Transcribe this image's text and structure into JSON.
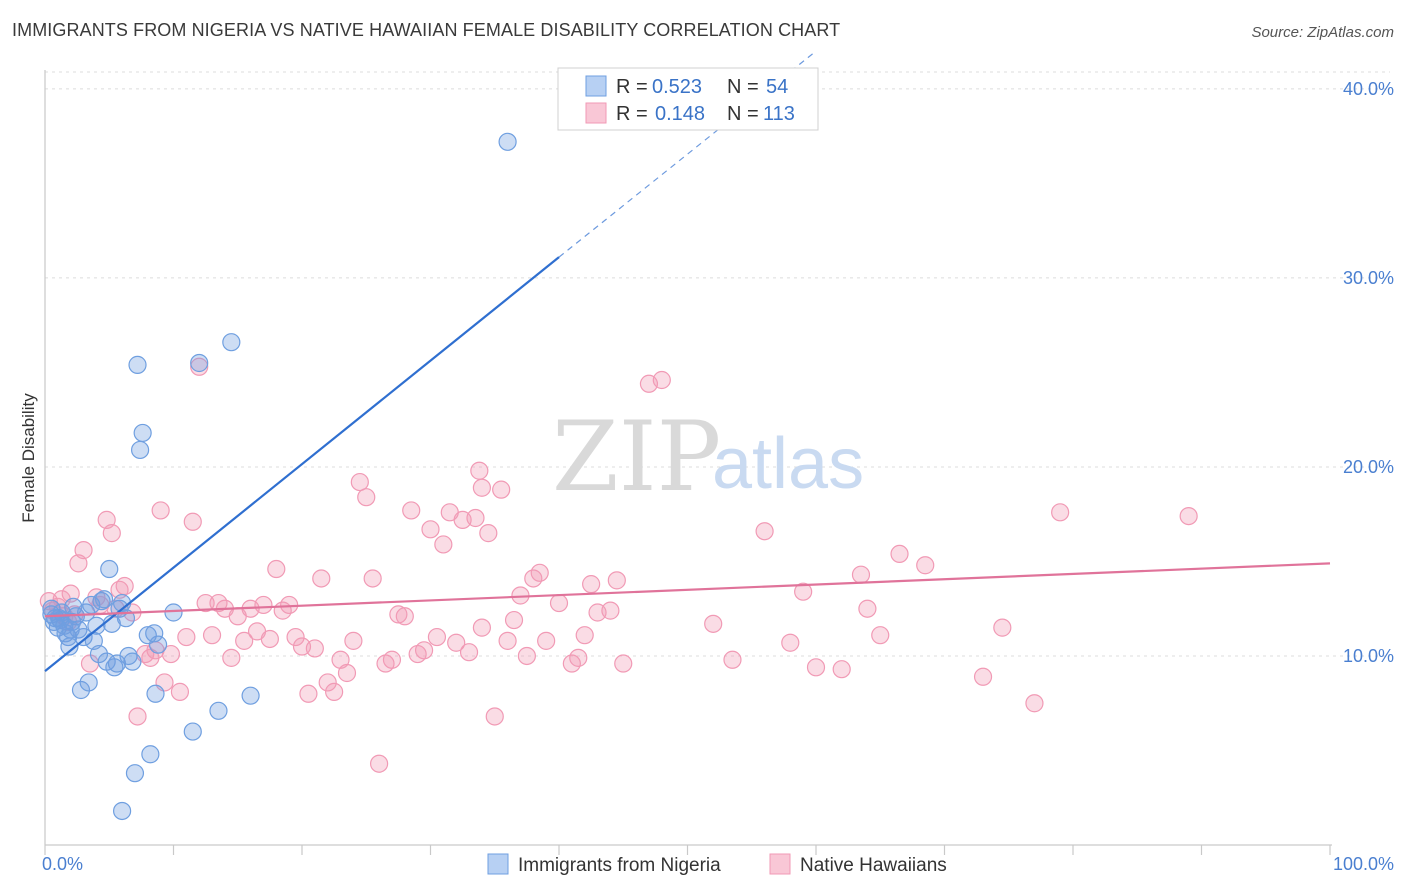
{
  "header": {
    "title": "IMMIGRANTS FROM NIGERIA VS NATIVE HAWAIIAN FEMALE DISABILITY CORRELATION CHART",
    "source": "Source: ZipAtlas.com"
  },
  "watermark": {
    "zip": "ZIP",
    "atlas": "atlas"
  },
  "legend": {
    "r_label": "R =",
    "n_label": "N =",
    "entries": [
      {
        "r": "0.523",
        "n": "54"
      },
      {
        "r": "0.148",
        "n": "113"
      }
    ]
  },
  "bottom_legend": [
    "Immigrants from Nigeria",
    "Native Hawaiians"
  ],
  "chart_data": {
    "type": "scatter",
    "xlabel": "",
    "ylabel": "Female Disability",
    "xlim": [
      0,
      100
    ],
    "ylim": [
      0,
      41
    ],
    "x_tick_labels": [
      "0.0%",
      "100.0%"
    ],
    "y_ticks": [
      10,
      20,
      30,
      40
    ],
    "y_tick_labels": [
      "10.0%",
      "20.0%",
      "30.0%",
      "40.0%"
    ],
    "grid": true,
    "legend_position": "top-center",
    "colors": {
      "nigeria": "#6f9fe0",
      "hawaiian": "#f19ab5",
      "nigeria_line": "#2f6fd0",
      "hawaiian_line": "#e0739a"
    },
    "series": [
      {
        "name": "Immigrants from Nigeria",
        "r": 0.523,
        "n": 54,
        "trend": {
          "x0": 0,
          "y0": 9.2,
          "x1": 40,
          "y1": 31.1,
          "dash_to_x": 60,
          "dash_to_y": 42
        },
        "points": [
          [
            0.5,
            12.5
          ],
          [
            0.5,
            12.2
          ],
          [
            0.7,
            11.8
          ],
          [
            0.8,
            12.0
          ],
          [
            1.0,
            11.5
          ],
          [
            1.2,
            11.9
          ],
          [
            1.3,
            12.3
          ],
          [
            1.5,
            11.6
          ],
          [
            1.6,
            11.2
          ],
          [
            1.8,
            11.0
          ],
          [
            1.9,
            10.5
          ],
          [
            2.1,
            11.8
          ],
          [
            2.2,
            12.6
          ],
          [
            2.4,
            12.1
          ],
          [
            2.6,
            11.4
          ],
          [
            2.8,
            8.2
          ],
          [
            3.0,
            11.0
          ],
          [
            3.2,
            12.3
          ],
          [
            3.4,
            8.6
          ],
          [
            3.6,
            12.7
          ],
          [
            3.8,
            10.8
          ],
          [
            4.0,
            11.6
          ],
          [
            4.2,
            10.1
          ],
          [
            4.4,
            12.9
          ],
          [
            4.6,
            13.0
          ],
          [
            4.8,
            9.7
          ],
          [
            5.0,
            14.6
          ],
          [
            5.2,
            11.7
          ],
          [
            5.4,
            9.4
          ],
          [
            5.6,
            9.6
          ],
          [
            5.8,
            12.5
          ],
          [
            6.0,
            12.8
          ],
          [
            6.3,
            12.0
          ],
          [
            6.5,
            10.0
          ],
          [
            6.8,
            9.7
          ],
          [
            7.0,
            3.8
          ],
          [
            7.2,
            25.4
          ],
          [
            7.4,
            20.9
          ],
          [
            7.6,
            21.8
          ],
          [
            8.0,
            11.1
          ],
          [
            8.2,
            4.8
          ],
          [
            8.5,
            11.2
          ],
          [
            8.6,
            8.0
          ],
          [
            8.8,
            10.6
          ],
          [
            10.0,
            12.3
          ],
          [
            11.5,
            6.0
          ],
          [
            12.0,
            25.5
          ],
          [
            13.5,
            7.1
          ],
          [
            14.5,
            26.6
          ],
          [
            16.0,
            7.9
          ],
          [
            6.0,
            1.8
          ],
          [
            36.0,
            37.2
          ],
          [
            2.0,
            11.4
          ],
          [
            1.1,
            12.0
          ]
        ]
      },
      {
        "name": "Native Hawaiians",
        "r": 0.148,
        "n": 113,
        "trend": {
          "x0": 0,
          "y0": 12.1,
          "x1": 100,
          "y1": 14.9
        },
        "points": [
          [
            0.3,
            12.9
          ],
          [
            0.6,
            12.4
          ],
          [
            1.0,
            12.6
          ],
          [
            1.3,
            13.0
          ],
          [
            1.5,
            12.1
          ],
          [
            1.8,
            11.8
          ],
          [
            2.0,
            13.3
          ],
          [
            2.3,
            12.2
          ],
          [
            2.6,
            14.9
          ],
          [
            3.0,
            15.6
          ],
          [
            3.5,
            9.6
          ],
          [
            4.0,
            13.1
          ],
          [
            4.3,
            12.7
          ],
          [
            4.8,
            17.2
          ],
          [
            5.2,
            16.5
          ],
          [
            5.5,
            12.5
          ],
          [
            5.8,
            13.5
          ],
          [
            6.2,
            13.7
          ],
          [
            6.8,
            12.3
          ],
          [
            7.2,
            6.8
          ],
          [
            7.8,
            10.1
          ],
          [
            8.2,
            9.9
          ],
          [
            8.6,
            10.3
          ],
          [
            9.0,
            17.7
          ],
          [
            9.3,
            8.6
          ],
          [
            9.8,
            10.1
          ],
          [
            10.5,
            8.1
          ],
          [
            11.0,
            11.0
          ],
          [
            11.5,
            17.1
          ],
          [
            12.0,
            25.3
          ],
          [
            12.5,
            12.8
          ],
          [
            13.0,
            11.1
          ],
          [
            13.5,
            12.8
          ],
          [
            14.0,
            12.5
          ],
          [
            14.5,
            9.9
          ],
          [
            15.0,
            12.1
          ],
          [
            15.5,
            10.8
          ],
          [
            16.0,
            12.5
          ],
          [
            16.5,
            11.3
          ],
          [
            17.0,
            12.7
          ],
          [
            17.5,
            10.9
          ],
          [
            18.0,
            14.6
          ],
          [
            18.5,
            12.4
          ],
          [
            19.0,
            12.7
          ],
          [
            19.5,
            11.0
          ],
          [
            20.0,
            10.5
          ],
          [
            20.5,
            8.0
          ],
          [
            21.0,
            10.4
          ],
          [
            21.5,
            14.1
          ],
          [
            22.0,
            8.6
          ],
          [
            22.5,
            8.1
          ],
          [
            23.0,
            9.8
          ],
          [
            23.5,
            9.1
          ],
          [
            24.0,
            10.8
          ],
          [
            24.5,
            19.2
          ],
          [
            25.0,
            18.4
          ],
          [
            25.5,
            14.1
          ],
          [
            26.0,
            4.3
          ],
          [
            26.5,
            9.6
          ],
          [
            27.0,
            9.8
          ],
          [
            27.5,
            12.2
          ],
          [
            28.0,
            12.1
          ],
          [
            28.5,
            17.7
          ],
          [
            29.0,
            10.1
          ],
          [
            29.5,
            10.3
          ],
          [
            30.0,
            16.7
          ],
          [
            30.5,
            11.0
          ],
          [
            31.0,
            15.9
          ],
          [
            31.5,
            17.6
          ],
          [
            32.0,
            10.7
          ],
          [
            32.5,
            17.2
          ],
          [
            33.0,
            10.2
          ],
          [
            33.5,
            17.3
          ],
          [
            34.0,
            11.5
          ],
          [
            34.5,
            16.5
          ],
          [
            35.0,
            6.8
          ],
          [
            35.5,
            18.8
          ],
          [
            36.0,
            10.8
          ],
          [
            36.5,
            11.9
          ],
          [
            37.0,
            13.2
          ],
          [
            37.5,
            10.0
          ],
          [
            38.0,
            14.1
          ],
          [
            38.5,
            14.4
          ],
          [
            39.0,
            10.8
          ],
          [
            40.0,
            12.8
          ],
          [
            41.0,
            9.6
          ],
          [
            41.5,
            9.9
          ],
          [
            42.0,
            11.1
          ],
          [
            42.5,
            13.8
          ],
          [
            43.0,
            12.3
          ],
          [
            44.0,
            12.4
          ],
          [
            44.5,
            14.0
          ],
          [
            45.0,
            9.6
          ],
          [
            47.0,
            24.4
          ],
          [
            48.0,
            24.6
          ],
          [
            52.0,
            11.7
          ],
          [
            53.5,
            9.8
          ],
          [
            56.0,
            16.6
          ],
          [
            58.0,
            10.7
          ],
          [
            59.0,
            13.4
          ],
          [
            60.0,
            9.4
          ],
          [
            62.0,
            9.3
          ],
          [
            63.5,
            14.3
          ],
          [
            64.0,
            12.5
          ],
          [
            65.0,
            11.1
          ],
          [
            66.5,
            15.4
          ],
          [
            68.5,
            14.8
          ],
          [
            73.0,
            8.9
          ],
          [
            74.5,
            11.5
          ],
          [
            77.0,
            7.5
          ],
          [
            79.0,
            17.6
          ],
          [
            89.0,
            17.4
          ],
          [
            33.8,
            19.8
          ],
          [
            34.0,
            18.9
          ]
        ]
      }
    ]
  }
}
